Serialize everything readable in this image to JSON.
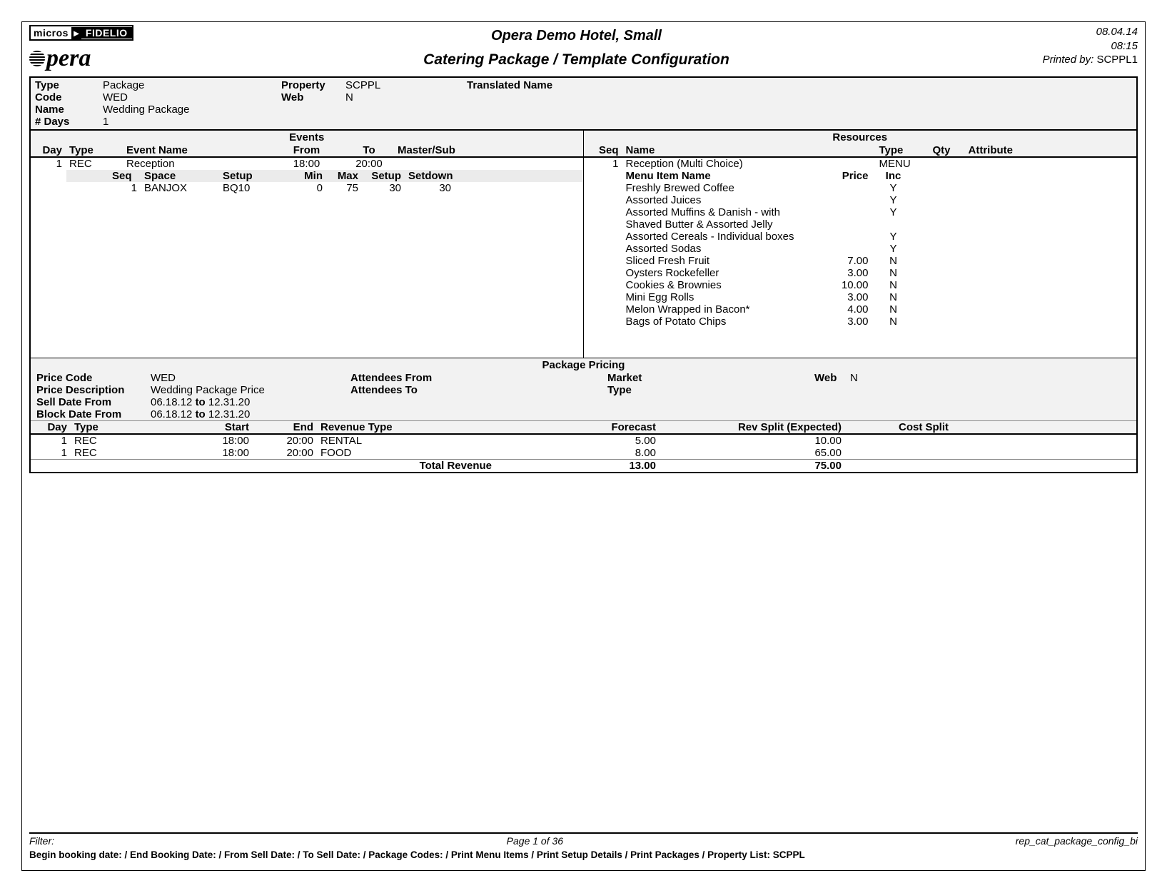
{
  "header": {
    "brand_micros": "micros",
    "brand_fidelio": "FIDELIO",
    "brand_opera": "pera",
    "hotel": "Opera Demo Hotel, Small",
    "report_title": "Catering Package / Template Configuration",
    "date": "08.04.14",
    "time": "08:15",
    "printed_by_label": "Printed by:",
    "printed_by": "SCPPL1"
  },
  "info": {
    "labels": {
      "type": "Type",
      "code": "Code",
      "name": "Name",
      "days": "# Days",
      "property": "Property",
      "web": "Web",
      "translated": "Translated Name"
    },
    "type": "Package",
    "code": "WED",
    "name": "Wedding Package",
    "days": "1",
    "property": "SCPPL",
    "web": "N",
    "translated": ""
  },
  "sections": {
    "events": "Events",
    "resources": "Resources"
  },
  "events": {
    "columns": {
      "day": "Day",
      "type": "Type",
      "event_name": "Event Name",
      "from": "From",
      "to": "To",
      "master_sub": "Master/Sub"
    },
    "rows": [
      {
        "day": "1",
        "type": "REC",
        "event_name": "Reception",
        "from": "18:00",
        "to": "20:00",
        "master_sub": ""
      }
    ],
    "space_columns": {
      "seq": "Seq",
      "space": "Space",
      "setup": "Setup",
      "min": "Min",
      "max": "Max",
      "setup_t": "Setup",
      "setdown": "Setdown"
    },
    "space_rows": [
      {
        "seq": "1",
        "space": "BANJOX",
        "setup": "BQ10",
        "min": "0",
        "max": "75",
        "setup_t": "30",
        "setdown": "30"
      }
    ]
  },
  "resources": {
    "columns": {
      "seq": "Seq",
      "name": "Name",
      "type": "Type",
      "qty": "Qty",
      "attribute": "Attribute"
    },
    "rows": [
      {
        "seq": "1",
        "name": "Reception (Multi Choice)",
        "type": "MENU",
        "qty": "",
        "attribute": ""
      }
    ],
    "menu_columns": {
      "name": "Menu Item Name",
      "price": "Price",
      "inc": "Inc"
    },
    "menu_rows": [
      {
        "name": "Freshly Brewed Coffee",
        "price": "",
        "inc": "Y"
      },
      {
        "name": "Assorted Juices",
        "price": "",
        "inc": "Y"
      },
      {
        "name": "Assorted Muffins & Danish - with Shaved Butter & Assorted Jelly",
        "price": "",
        "inc": "Y"
      },
      {
        "name": "Assorted Cereals - Individual boxes",
        "price": "",
        "inc": "Y"
      },
      {
        "name": "Assorted Sodas",
        "price": "",
        "inc": "Y"
      },
      {
        "name": "Sliced Fresh Fruit",
        "price": "7.00",
        "inc": "N"
      },
      {
        "name": "Oysters Rockefeller",
        "price": "3.00",
        "inc": "N"
      },
      {
        "name": "Cookies & Brownies",
        "price": "10.00",
        "inc": "N"
      },
      {
        "name": "Mini Egg Rolls",
        "price": "3.00",
        "inc": "N"
      },
      {
        "name": "Melon Wrapped in Bacon*",
        "price": "4.00",
        "inc": "N"
      },
      {
        "name": "Bags of Potato Chips",
        "price": "3.00",
        "inc": "N"
      }
    ]
  },
  "pricing": {
    "title": "Package Pricing",
    "labels": {
      "price_code": "Price Code",
      "price_desc": "Price Description",
      "sell_from": "Sell Date From",
      "block_from": "Block Date From",
      "att_from": "Attendees From",
      "att_to": "Attendees To",
      "market": "Market",
      "type": "Type",
      "web": "Web"
    },
    "price_code": "WED",
    "price_desc": "Wedding Package Price",
    "sell_from": "06.18.12",
    "sell_to": "12.31.20",
    "block_from": "06.18.12",
    "block_to": "12.31.20",
    "to_word": "to",
    "att_from": "",
    "att_to": "",
    "market": "",
    "type": "",
    "web": "N"
  },
  "revenue": {
    "columns": {
      "day": "Day",
      "type": "Type",
      "start": "Start",
      "end": "End",
      "rev_type": "Revenue Type",
      "forecast": "Forecast",
      "rev_split": "Rev Split (Expected)",
      "cost_split": "Cost Split"
    },
    "rows": [
      {
        "day": "1",
        "type": "REC",
        "start": "18:00",
        "end": "20:00",
        "rev_type": "RENTAL",
        "forecast": "5.00",
        "rev_split": "10.00",
        "cost_split": ""
      },
      {
        "day": "1",
        "type": "REC",
        "start": "18:00",
        "end": "20:00",
        "rev_type": "FOOD",
        "forecast": "8.00",
        "rev_split": "65.00",
        "cost_split": ""
      }
    ],
    "total_label": "Total Revenue",
    "total_forecast": "13.00",
    "total_rev_split": "75.00"
  },
  "footer": {
    "filter_label": "Filter:",
    "page": "Page 1 of 36",
    "report_id": "rep_cat_package_config_bi",
    "criteria": "Begin booking date:  / End Booking Date:  / From Sell Date:  / To Sell Date:  / Package Codes:  / Print Menu Items / Print Setup Details / Print Packages / Property List: SCPPL"
  }
}
